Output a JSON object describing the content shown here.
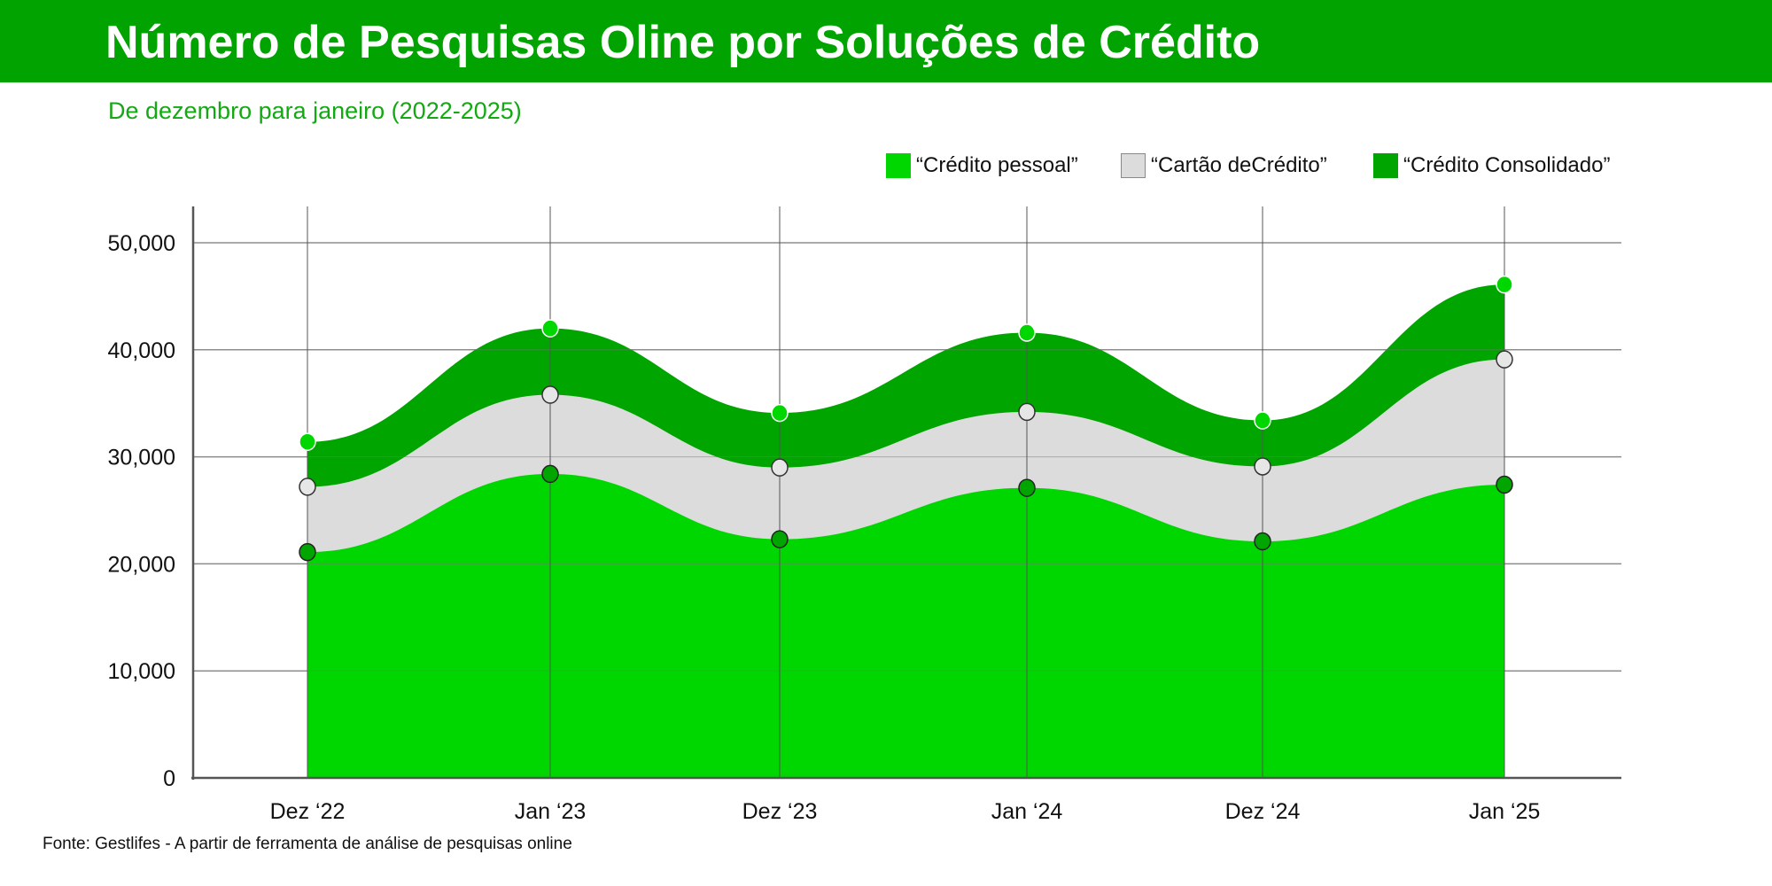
{
  "header": {
    "title": "Número de Pesquisas Oline por Soluções de Crédito",
    "subtitle": "De dezembro para janeiro (2022-2025)"
  },
  "footnote": "Fonte: Gestlifes - A partir de ferramenta de análise de pesquisas online",
  "colors": {
    "header": "#00a300",
    "subtitle": "#14a814"
  },
  "chart_data": {
    "type": "area",
    "stacked": true,
    "smooth": true,
    "title": "Número de Pesquisas Oline por Soluções de Crédito",
    "subtitle": "De dezembro para janeiro (2022-2025)",
    "categories": [
      "Dez ‘22",
      "Jan ‘23",
      "Dez ‘23",
      "Jan ‘24",
      "Dez ‘24",
      "Jan ‘25"
    ],
    "y_ticks": [
      "0",
      "10,000",
      "20,000",
      "30,000",
      "40,000",
      "50,000"
    ],
    "ylim": [
      0,
      53000
    ],
    "grid": true,
    "legend_position": "top-right",
    "series": [
      {
        "name": "“Crédito pessoal”",
        "color": "#00d600",
        "values": [
          21100,
          28400,
          22300,
          27100,
          22100,
          27400
        ]
      },
      {
        "name": "“Cartão deCrédito”",
        "color": "#dcdcdc",
        "values": [
          6100,
          7400,
          6700,
          7100,
          7000,
          11700
        ]
      },
      {
        "name": "“Crédito Consolidado”",
        "color": "#00a500",
        "values": [
          4200,
          6200,
          5100,
          7400,
          4300,
          7000
        ]
      }
    ]
  }
}
